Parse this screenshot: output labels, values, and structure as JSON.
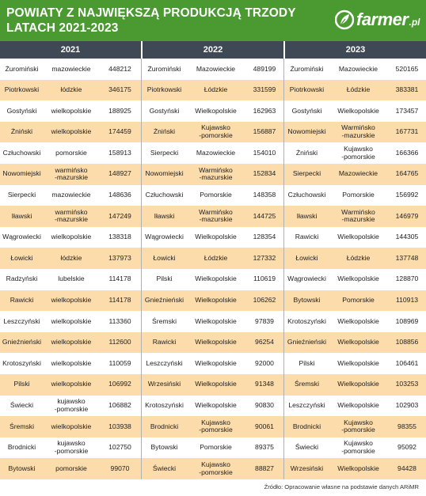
{
  "header": {
    "title": "POWIATY Z NAJWIĘKSZĄ PRODUKCJĄ TRZODY\nLATACH 2021-2023",
    "logo_text": "farmer",
    "logo_suffix": ".pl",
    "logo_icon": "leaf-icon"
  },
  "columns": [
    {
      "year": "2021",
      "rows": [
        {
          "powiat": "Żuromiński",
          "woj": "mazowieckie",
          "value": "448212"
        },
        {
          "powiat": "Piotrkowski",
          "woj": "łódzkie",
          "value": "346175"
        },
        {
          "powiat": "Gostyński",
          "woj": "wielkopolskie",
          "value": "188925"
        },
        {
          "powiat": "Żniński",
          "woj": "wielkopolskie",
          "value": "174459"
        },
        {
          "powiat": "Człuchowski",
          "woj": "pomorskie",
          "value": "158913"
        },
        {
          "powiat": "Nowomiejski",
          "woj": "warmińsko\n-mazurskie",
          "value": "148927"
        },
        {
          "powiat": "Sierpecki",
          "woj": "mazowieckie",
          "value": "148636"
        },
        {
          "powiat": "Iławski",
          "woj": "warmińsko\n-mazurskie",
          "value": "147249"
        },
        {
          "powiat": "Wągrowiecki",
          "woj": "wielkopolskie",
          "value": "138318"
        },
        {
          "powiat": "Łowicki",
          "woj": "łódzkie",
          "value": "137973"
        },
        {
          "powiat": "Radzyński",
          "woj": "lubelskie",
          "value": "114178"
        },
        {
          "powiat": "Rawicki",
          "woj": "wielkopolskie",
          "value": "114178"
        },
        {
          "powiat": "Leszczyński",
          "woj": "wielkopolskie",
          "value": "113360"
        },
        {
          "powiat": "Gnieźnieński",
          "woj": "wielkopolskie",
          "value": "112600"
        },
        {
          "powiat": "Krotoszyński",
          "woj": "wielkopolskie",
          "value": "110059"
        },
        {
          "powiat": "Pilski",
          "woj": "wielkopolskie",
          "value": "106992"
        },
        {
          "powiat": "Świecki",
          "woj": "kujawsko\n-pomorskie",
          "value": "106882"
        },
        {
          "powiat": "Śremski",
          "woj": "wielkopolskie",
          "value": "103938"
        },
        {
          "powiat": "Brodnicki",
          "woj": "kujawsko\n-pomorskie",
          "value": "102750"
        },
        {
          "powiat": "Bytowski",
          "woj": "pomorskie",
          "value": "99070"
        }
      ]
    },
    {
      "year": "2022",
      "rows": [
        {
          "powiat": "Żuromiński",
          "woj": "Mazowieckie",
          "value": "489199"
        },
        {
          "powiat": "Piotrkowski",
          "woj": "Łódzkie",
          "value": "331599"
        },
        {
          "powiat": "Gostyński",
          "woj": "Wielkopolskie",
          "value": "162963"
        },
        {
          "powiat": "Żniński",
          "woj": "Kujawsko\n-pomorskie",
          "value": "156887"
        },
        {
          "powiat": "Sierpecki",
          "woj": "Mazowieckie",
          "value": "154010"
        },
        {
          "powiat": "Nowomiejski",
          "woj": "Warmińsko\n-mazurskie",
          "value": "152834"
        },
        {
          "powiat": "Człuchowski",
          "woj": "Pomorskie",
          "value": "148358"
        },
        {
          "powiat": "Iławski",
          "woj": "Warmińsko\n-mazurskie",
          "value": "144725"
        },
        {
          "powiat": "Wągrowiecki",
          "woj": "Wielkopolskie",
          "value": "128354"
        },
        {
          "powiat": "Łowicki",
          "woj": "Łódzkie",
          "value": "127332"
        },
        {
          "powiat": "Pilski",
          "woj": "Wielkopolskie",
          "value": "110619"
        },
        {
          "powiat": "Gnieźnieński",
          "woj": "Wielkopolskie",
          "value": "106262"
        },
        {
          "powiat": "Śremski",
          "woj": "Wielkopolskie",
          "value": "97839"
        },
        {
          "powiat": "Rawicki",
          "woj": "Wielkopolskie",
          "value": "96254"
        },
        {
          "powiat": "Leszczyński",
          "woj": "Wielkopolskie",
          "value": "92000"
        },
        {
          "powiat": "Wrzesiński",
          "woj": "Wielkopolskie",
          "value": "91348"
        },
        {
          "powiat": "Krotoszyński",
          "woj": "Wielkopolskie",
          "value": "90830"
        },
        {
          "powiat": "Brodnicki",
          "woj": "Kujawsko\n-pomorskie",
          "value": "90061"
        },
        {
          "powiat": "Bytowski",
          "woj": "Pomorskie",
          "value": "89375"
        },
        {
          "powiat": "Świecki",
          "woj": "Kujawsko\n-pomorskie",
          "value": "88827"
        }
      ]
    },
    {
      "year": "2023",
      "rows": [
        {
          "powiat": "Żuromiński",
          "woj": "Mazowieckie",
          "value": "520165"
        },
        {
          "powiat": "Piotrkowski",
          "woj": "Łódzkie",
          "value": "383381"
        },
        {
          "powiat": "Gostyński",
          "woj": "Wielkopolskie",
          "value": "173457"
        },
        {
          "powiat": "Nowomiejski",
          "woj": "Warmińsko\n-mazurskie",
          "value": "167731"
        },
        {
          "powiat": "Żniński",
          "woj": "Kujawsko\n-pomorskie",
          "value": "166366"
        },
        {
          "powiat": "Sierpecki",
          "woj": "Mazowieckie",
          "value": "164765"
        },
        {
          "powiat": "Człuchowski",
          "woj": "Pomorskie",
          "value": "156992"
        },
        {
          "powiat": "Iławski",
          "woj": "Warmińsko\n-mazurskie",
          "value": "146979"
        },
        {
          "powiat": "Rawicki",
          "woj": "Wielkopolskie",
          "value": "144305"
        },
        {
          "powiat": "Łowicki",
          "woj": "Łódzkie",
          "value": "137748"
        },
        {
          "powiat": "Wągrowiecki",
          "woj": "Wielkopolskie",
          "value": "128870"
        },
        {
          "powiat": "Bytowski",
          "woj": "Pomorskie",
          "value": "110913"
        },
        {
          "powiat": "Krotoszyński",
          "woj": "Wielkopolskie",
          "value": "108969"
        },
        {
          "powiat": "Gnieźnieński",
          "woj": "Wielkopolskie",
          "value": "108856"
        },
        {
          "powiat": "Pilski",
          "woj": "Wielkopolskie",
          "value": "106461"
        },
        {
          "powiat": "Śremski",
          "woj": "Wielkopolskie",
          "value": "103253"
        },
        {
          "powiat": "Leszczyński",
          "woj": "Wielkopolskie",
          "value": "102903"
        },
        {
          "powiat": "Brodnicki",
          "woj": "Kujawsko\n-pomorskie",
          "value": "98355"
        },
        {
          "powiat": "Świecki",
          "woj": "Kujawsko\n-pomorskie",
          "value": "95092"
        },
        {
          "powiat": "Wrzesiński",
          "woj": "Wielkopolskie",
          "value": "94428"
        }
      ]
    }
  ],
  "source": "Źródło: Opracowanie własne na podstawie danych ARiMR",
  "colors": {
    "header": "#4a9a31",
    "year_bar": "#3f4956",
    "stripe": "#fbe9db",
    "highlight": "#fcdcab"
  }
}
